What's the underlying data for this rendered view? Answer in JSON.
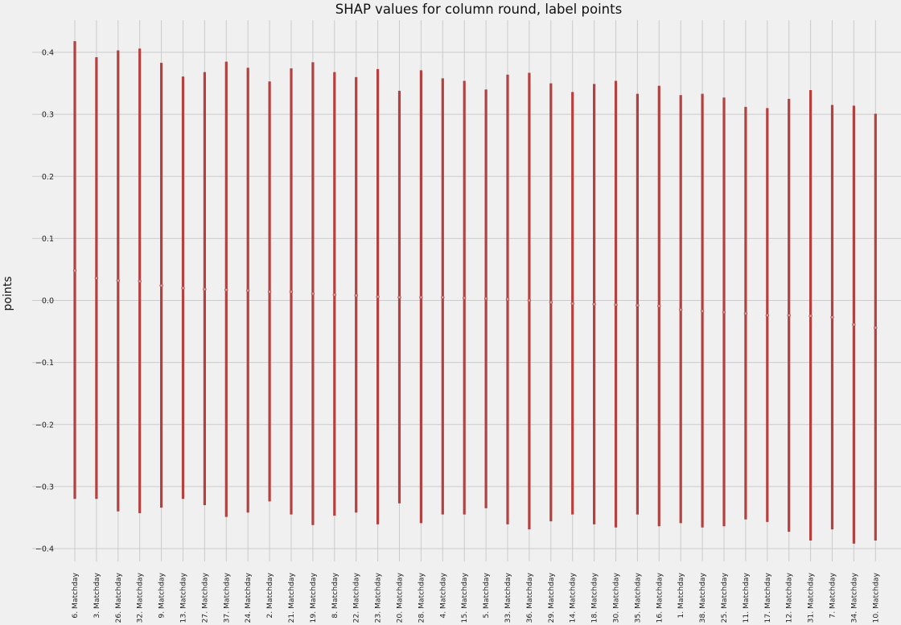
{
  "chart_data": {
    "type": "errorbar",
    "title": "SHAP values for column round, label points",
    "xlabel": "",
    "ylabel": "points",
    "ylim": [
      -0.45,
      0.45
    ],
    "yticks": [
      -0.4,
      -0.3,
      -0.2,
      -0.1,
      0.0,
      0.1,
      0.2,
      0.3,
      0.4
    ],
    "ytick_labels": [
      "−0.4",
      "−0.3",
      "−0.2",
      "−0.1",
      "0.0",
      "0.1",
      "0.2",
      "0.3",
      "0.4"
    ],
    "grid": true,
    "categories": [
      "6. Matchday",
      "3. Matchday",
      "26. Matchday",
      "32. Matchday",
      "9. Matchday",
      "13. Matchday",
      "27. Matchday",
      "37. Matchday",
      "24. Matchday",
      "2. Matchday",
      "21. Matchday",
      "19. Matchday",
      "8. Matchday",
      "22. Matchday",
      "23. Matchday",
      "20. Matchday",
      "28. Matchday",
      "4. Matchday",
      "15. Matchday",
      "5. Matchday",
      "33. Matchday",
      "36. Matchday",
      "29. Matchday",
      "14. Matchday",
      "18. Matchday",
      "30. Matchday",
      "35. Matchday",
      "16. Matchday",
      "1. Matchday",
      "38. Matchday",
      "25. Matchday",
      "11. Matchday",
      "17. Matchday",
      "12. Matchday",
      "31. Matchday",
      "7. Matchday",
      "34. Matchday",
      "10. Matchday"
    ],
    "mean": [
      0.048,
      0.036,
      0.032,
      0.031,
      0.024,
      0.02,
      0.018,
      0.017,
      0.016,
      0.014,
      0.014,
      0.011,
      0.009,
      0.008,
      0.006,
      0.005,
      0.005,
      0.005,
      0.004,
      0.003,
      0.002,
      0.0,
      -0.003,
      -0.005,
      -0.006,
      -0.007,
      -0.008,
      -0.009,
      -0.015,
      -0.017,
      -0.019,
      -0.021,
      -0.024,
      -0.024,
      -0.025,
      -0.027,
      -0.039,
      -0.044
    ],
    "high": [
      0.418,
      0.392,
      0.403,
      0.406,
      0.383,
      0.361,
      0.368,
      0.385,
      0.375,
      0.353,
      0.374,
      0.384,
      0.368,
      0.36,
      0.373,
      0.338,
      0.371,
      0.358,
      0.354,
      0.34,
      0.364,
      0.367,
      0.35,
      0.336,
      0.349,
      0.354,
      0.333,
      0.346,
      0.331,
      0.333,
      0.327,
      0.312,
      0.31,
      0.325,
      0.339,
      0.315,
      0.314,
      0.301
    ],
    "low": [
      -0.32,
      -0.32,
      -0.34,
      -0.343,
      -0.334,
      -0.32,
      -0.33,
      -0.349,
      -0.342,
      -0.324,
      -0.345,
      -0.362,
      -0.347,
      -0.342,
      -0.361,
      -0.327,
      -0.359,
      -0.345,
      -0.345,
      -0.335,
      -0.361,
      -0.369,
      -0.356,
      -0.345,
      -0.361,
      -0.366,
      -0.345,
      -0.364,
      -0.359,
      -0.366,
      -0.364,
      -0.353,
      -0.357,
      -0.373,
      -0.387,
      -0.369,
      -0.392,
      -0.387
    ],
    "colors": {
      "bar": "#b54040",
      "grid": "#cbcbcb",
      "background": "#f0f0f0"
    }
  }
}
